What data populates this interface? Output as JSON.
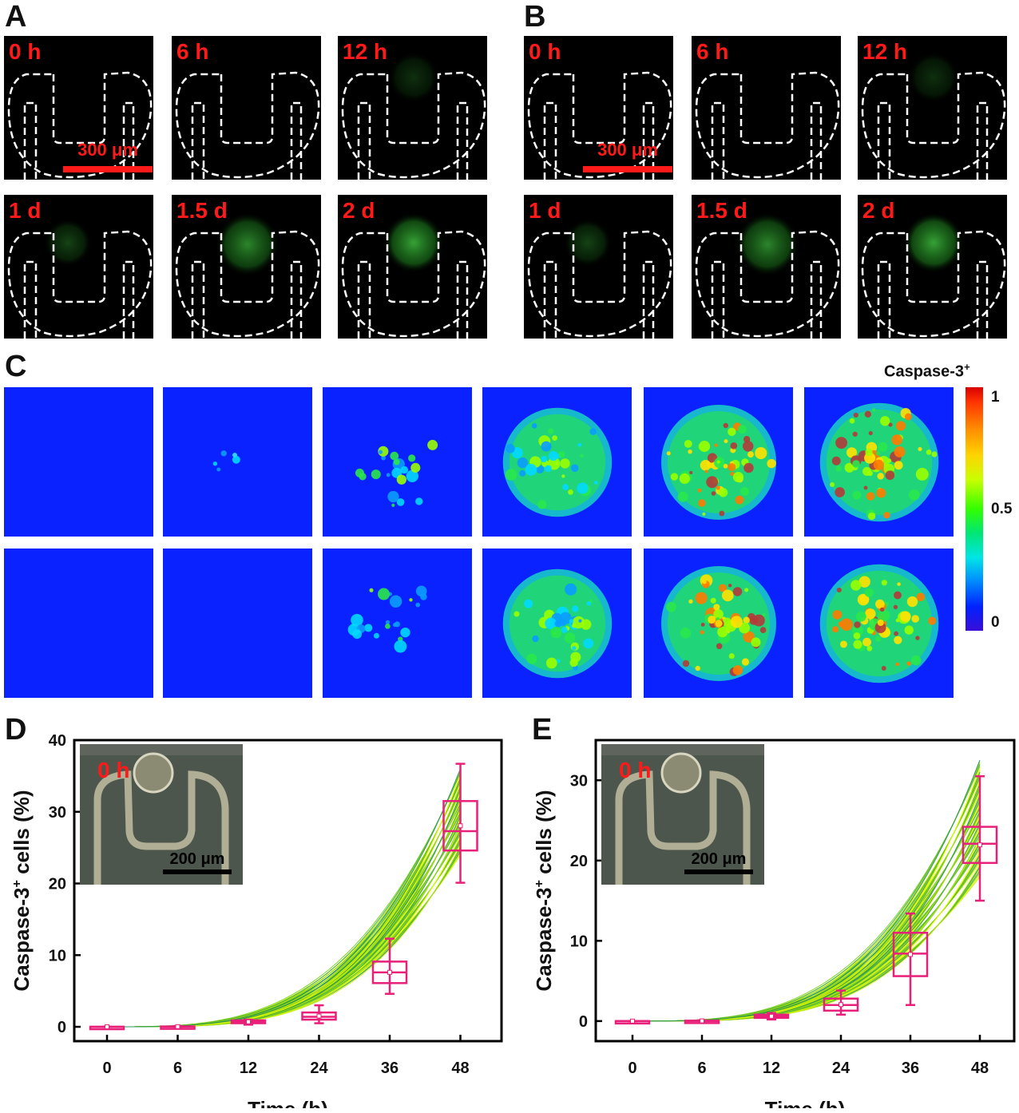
{
  "panels": {
    "a": "A",
    "b": "B",
    "c": "C",
    "d": "D",
    "e": "E"
  },
  "microscopy": {
    "labels": [
      "0 h",
      "6 h",
      "12 h",
      "1 d",
      "1.5 d",
      "2 d"
    ],
    "scale_label": "300 μm"
  },
  "heatmap": {
    "title": "Caspase-3",
    "title_sup": "+",
    "ticks": [
      "1",
      "0.5",
      "0"
    ]
  },
  "chart_data": [
    {
      "type": "line",
      "panel": "D",
      "xlabel": "Time (h)",
      "ylabel": "Caspase-3",
      "ylabel_sup": "+",
      "ylabel_rest": " cells (%)",
      "categories": [
        "0",
        "6",
        "12",
        "24",
        "36",
        "48"
      ],
      "ylim": [
        -2,
        40
      ],
      "yticks": [
        0,
        10,
        20,
        30,
        40
      ],
      "boxes": [
        {
          "x": "0",
          "min": 0,
          "q1": 0,
          "median": 0,
          "q3": 0,
          "max": 0
        },
        {
          "x": "6",
          "min": 0,
          "q1": 0,
          "median": 0,
          "q3": 0.05,
          "max": 0.1
        },
        {
          "x": "12",
          "min": 0.3,
          "q1": 0.5,
          "median": 0.7,
          "q3": 0.9,
          "max": 1.0
        },
        {
          "x": "24",
          "min": 0.5,
          "q1": 1.0,
          "median": 1.4,
          "q3": 2.0,
          "max": 3.0
        },
        {
          "x": "36",
          "min": 4.6,
          "q1": 6.1,
          "median": 7.6,
          "q3": 9.1,
          "max": 12.3
        },
        {
          "x": "48",
          "min": 20.1,
          "q1": 24.6,
          "median": 27.3,
          "q3": 31.5,
          "max": 36.7
        }
      ],
      "curve_range_at_48": [
        24,
        36
      ],
      "inset": {
        "label": "0 h",
        "scale": "200 μm"
      }
    },
    {
      "type": "line",
      "panel": "E",
      "xlabel": "Time (h)",
      "ylabel": "Caspase-3",
      "ylabel_sup": "+",
      "ylabel_rest": " cells (%)",
      "categories": [
        "0",
        "6",
        "12",
        "24",
        "36",
        "48"
      ],
      "ylim": [
        -2.5,
        35
      ],
      "yticks": [
        0,
        10,
        20,
        30
      ],
      "boxes": [
        {
          "x": "0",
          "min": 0,
          "q1": 0,
          "median": 0,
          "q3": 0,
          "max": 0
        },
        {
          "x": "6",
          "min": 0,
          "q1": 0,
          "median": 0,
          "q3": 0.05,
          "max": 0.1
        },
        {
          "x": "12",
          "min": 0.2,
          "q1": 0.4,
          "median": 0.6,
          "q3": 0.8,
          "max": 1.0
        },
        {
          "x": "24",
          "min": 0.8,
          "q1": 1.3,
          "median": 2.0,
          "q3": 2.8,
          "max": 3.8
        },
        {
          "x": "36",
          "min": 2.0,
          "q1": 5.6,
          "median": 8.4,
          "q3": 11.0,
          "max": 13.4
        },
        {
          "x": "48",
          "min": 15.0,
          "q1": 19.7,
          "median": 22.1,
          "q3": 24.2,
          "max": 30.5
        }
      ],
      "curve_range_at_48": [
        18,
        32.5
      ],
      "inset": {
        "label": "0 h",
        "scale": "200 μm"
      }
    }
  ]
}
